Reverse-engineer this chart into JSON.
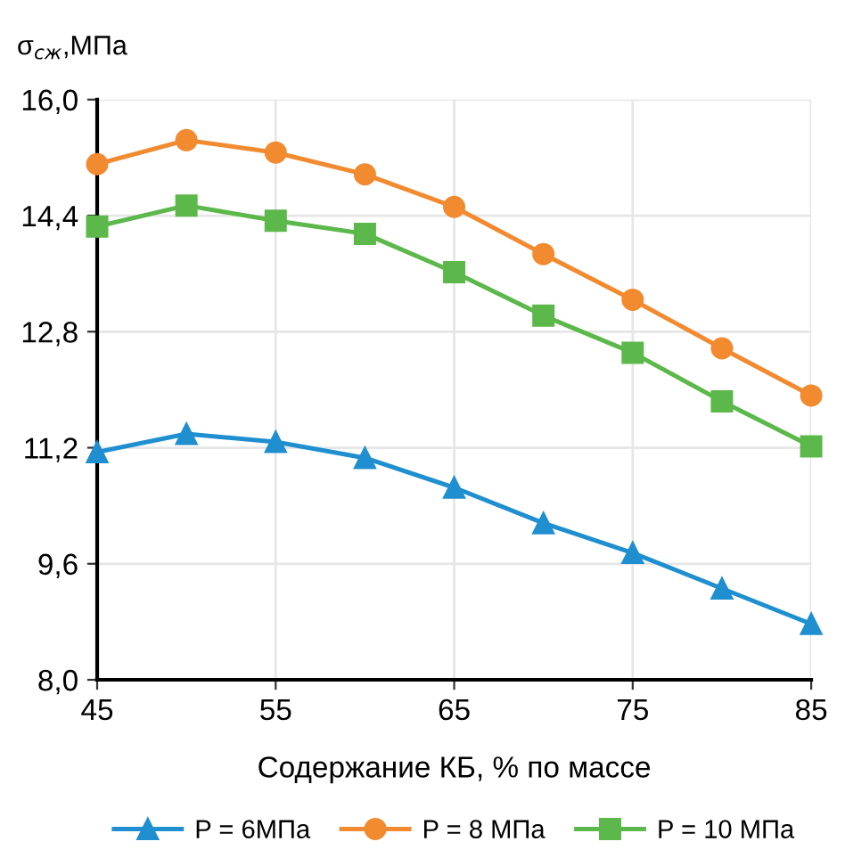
{
  "chart_data": {
    "type": "line",
    "ylabel": "σ$_{сж}$,МПа",
    "xlabel": "Содержание КБ, % по массе",
    "x": [
      45,
      50,
      55,
      60,
      65,
      70,
      75,
      80,
      85
    ],
    "series": [
      {
        "name": "P = 6МПа",
        "color": "#1f8fd0",
        "marker": "triangle",
        "values": [
          11.14,
          11.39,
          11.28,
          11.06,
          10.65,
          10.16,
          9.75,
          9.26,
          8.77
        ]
      },
      {
        "name": "P = 8 МПа",
        "color": "#f28a30",
        "marker": "circle",
        "values": [
          15.11,
          15.44,
          15.27,
          14.97,
          14.52,
          13.87,
          13.24,
          12.57,
          11.92
        ]
      },
      {
        "name": "P = 10 МПа",
        "color": "#5cb84a",
        "marker": "square",
        "values": [
          14.25,
          14.54,
          14.33,
          14.15,
          13.62,
          13.02,
          12.51,
          11.84,
          11.22
        ]
      }
    ],
    "xlim": [
      45,
      85
    ],
    "xticks": [
      45,
      55,
      65,
      75,
      85
    ],
    "ylim": [
      8.0,
      16.0
    ],
    "yticks": [
      {
        "value": 8.0,
        "label": "8,0"
      },
      {
        "value": 9.6,
        "label": "9,6"
      },
      {
        "value": 11.2,
        "label": "11,2"
      },
      {
        "value": 12.8,
        "label": "12,8"
      },
      {
        "value": 14.4,
        "label": "14,4"
      },
      {
        "value": 16.0,
        "label": "16,0"
      }
    ],
    "grid": true,
    "legend": "bottom",
    "line_style": "solid"
  }
}
